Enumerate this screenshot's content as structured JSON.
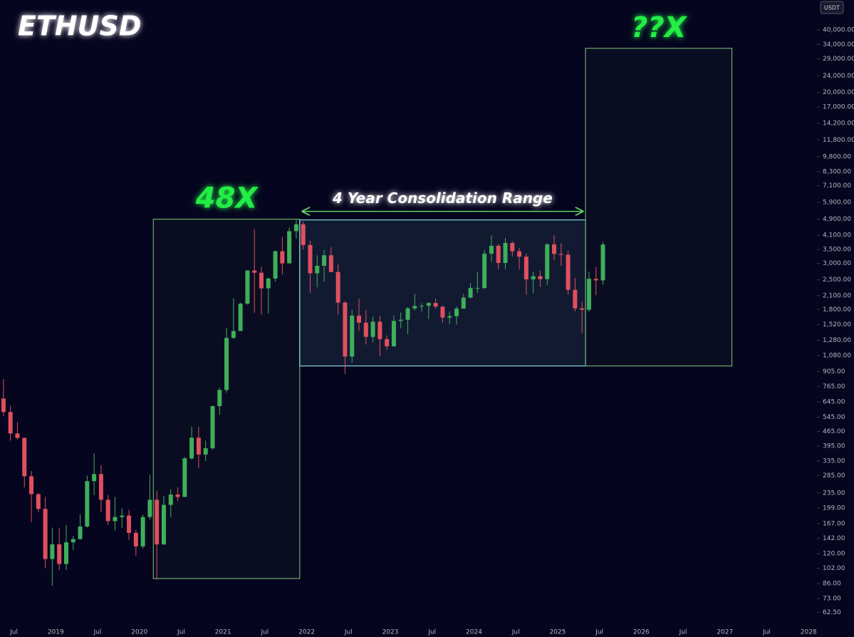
{
  "chart_data": {
    "type": "candlestick",
    "title": "ETHUSD",
    "currency": "USDT",
    "log_scale": true,
    "up_color": "#3fae5a",
    "down_color": "#e0505e",
    "x": [
      "2018-05",
      "2018-06",
      "2018-07",
      "2018-08",
      "2018-09",
      "2018-10",
      "2018-11",
      "2018-12",
      "2019-01",
      "2019-02",
      "2019-03",
      "2019-04",
      "2019-05",
      "2019-06",
      "2019-07",
      "2019-08",
      "2019-09",
      "2019-10",
      "2019-11",
      "2019-12",
      "2020-01",
      "2020-02",
      "2020-03",
      "2020-04",
      "2020-05",
      "2020-06",
      "2020-07",
      "2020-08",
      "2020-09",
      "2020-10",
      "2020-11",
      "2020-12",
      "2021-01",
      "2021-02",
      "2021-03",
      "2021-04",
      "2021-05",
      "2021-06",
      "2021-07",
      "2021-08",
      "2021-09",
      "2021-10",
      "2021-11",
      "2021-12",
      "2022-01",
      "2022-02",
      "2022-03",
      "2022-04",
      "2022-05",
      "2022-06",
      "2022-07",
      "2022-08",
      "2022-09",
      "2022-10",
      "2022-11",
      "2022-12",
      "2023-01",
      "2023-02",
      "2023-03",
      "2023-04",
      "2023-05",
      "2023-06",
      "2023-07",
      "2023-08",
      "2023-09",
      "2023-10",
      "2023-11",
      "2023-12",
      "2024-01",
      "2024-02",
      "2024-03",
      "2024-04",
      "2024-05",
      "2024-06",
      "2024-07",
      "2024-08",
      "2024-09",
      "2024-10",
      "2024-11",
      "2024-12",
      "2025-01",
      "2025-02",
      "2025-03",
      "2025-04",
      "2025-05",
      "2025-06",
      "2025-07"
    ],
    "open": [
      670,
      577,
      455,
      433,
      283,
      232,
      197,
      113,
      133,
      107,
      136,
      141,
      162,
      268,
      290,
      218,
      172,
      180,
      183,
      151,
      130,
      180,
      218,
      133,
      206,
      231,
      225,
      345,
      434,
      360,
      386,
      616,
      737,
      1313,
      1417,
      1918,
      2772,
      2706,
      2275,
      2536,
      3433,
      3000,
      4288,
      4630,
      3680,
      2688,
      2920,
      3283,
      2727,
      1942,
      1067,
      1680,
      1554,
      1328,
      1572,
      1295,
      1196,
      1585,
      1605,
      1822,
      1869,
      1874,
      1934,
      1857,
      1645,
      1671,
      1816,
      2052,
      2282,
      2283,
      3340,
      3647,
      3014,
      3762,
      3433,
      3232,
      2513,
      2603,
      2518,
      3705,
      3332,
      3300,
      2237,
      1822,
      1794,
      2528,
      2486
    ],
    "high": [
      830,
      620,
      515,
      435,
      300,
      235,
      225,
      160,
      160,
      165,
      146,
      185,
      285,
      365,
      320,
      230,
      225,
      198,
      195,
      156,
      185,
      288,
      240,
      228,
      245,
      250,
      350,
      490,
      490,
      420,
      620,
      755,
      1470,
      2040,
      1940,
      2780,
      4380,
      2890,
      2560,
      3470,
      4030,
      4460,
      4870,
      4780,
      3860,
      3280,
      3480,
      3590,
      2970,
      1970,
      1790,
      2030,
      1790,
      1660,
      1680,
      1350,
      1680,
      1740,
      1850,
      2140,
      1930,
      1950,
      2030,
      1870,
      1760,
      1860,
      2140,
      2410,
      2720,
      3480,
      4090,
      3730,
      3980,
      3840,
      3560,
      3350,
      2730,
      2770,
      3750,
      4100,
      3750,
      3450,
      2550,
      1960,
      2740,
      2880,
      3800
    ],
    "low": [
      550,
      420,
      425,
      250,
      170,
      190,
      102,
      84,
      100,
      100,
      125,
      140,
      160,
      230,
      190,
      165,
      155,
      160,
      140,
      117,
      127,
      175,
      90,
      132,
      180,
      215,
      225,
      340,
      310,
      335,
      380,
      560,
      715,
      1300,
      1440,
      1900,
      1730,
      1700,
      1720,
      2450,
      2650,
      3000,
      3950,
      3500,
      2160,
      2300,
      2450,
      2720,
      1700,
      880,
      1000,
      1420,
      1220,
      1250,
      1070,
      1150,
      1190,
      1460,
      1370,
      1780,
      1760,
      1620,
      1820,
      1550,
      1530,
      1520,
      1930,
      2040,
      2160,
      2260,
      3060,
      2810,
      2820,
      3240,
      2810,
      2120,
      2150,
      2310,
      2360,
      3100,
      2920,
      2120,
      1760,
      1385,
      1750,
      2110,
      2370
    ],
    "close": [
      577,
      455,
      433,
      283,
      232,
      197,
      113,
      133,
      107,
      136,
      141,
      162,
      268,
      290,
      218,
      172,
      180,
      183,
      151,
      130,
      180,
      218,
      133,
      206,
      231,
      225,
      345,
      434,
      360,
      386,
      616,
      737,
      1313,
      1417,
      1918,
      2772,
      2706,
      2275,
      2536,
      3433,
      3000,
      4288,
      4630,
      3680,
      2688,
      2920,
      3283,
      2727,
      1942,
      1067,
      1680,
      1554,
      1328,
      1572,
      1295,
      1196,
      1585,
      1605,
      1822,
      1869,
      1874,
      1934,
      1857,
      1645,
      1671,
      1816,
      2052,
      2282,
      2283,
      3340,
      3647,
      3014,
      3762,
      3433,
      3232,
      2513,
      2603,
      2518,
      3705,
      3332,
      3300,
      2237,
      1822,
      1794,
      2528,
      2486,
      3700
    ],
    "xlim": [
      "2018-05",
      "2028-02"
    ],
    "ylim": [
      54,
      55700
    ],
    "xticks": [
      {
        "value": "2018-07",
        "label": "Jul"
      },
      {
        "value": "2019-01",
        "label": "2019"
      },
      {
        "value": "2019-07",
        "label": "Jul"
      },
      {
        "value": "2020-01",
        "label": "2020"
      },
      {
        "value": "2020-07",
        "label": "Jul"
      },
      {
        "value": "2021-01",
        "label": "2021"
      },
      {
        "value": "2021-07",
        "label": "Jul"
      },
      {
        "value": "2022-01",
        "label": "2022"
      },
      {
        "value": "2022-07",
        "label": "Jul"
      },
      {
        "value": "2023-01",
        "label": "2023"
      },
      {
        "value": "2023-07",
        "label": "Jul"
      },
      {
        "value": "2024-01",
        "label": "2024"
      },
      {
        "value": "2024-07",
        "label": "Jul"
      },
      {
        "value": "2025-01",
        "label": "2025"
      },
      {
        "value": "2025-07",
        "label": "Jul"
      },
      {
        "value": "2026-01",
        "label": "2026"
      },
      {
        "value": "2026-07",
        "label": "Jul"
      },
      {
        "value": "2027-01",
        "label": "2027"
      },
      {
        "value": "2027-07",
        "label": "Jul"
      },
      {
        "value": "2028-01",
        "label": "2028"
      }
    ],
    "yticks": [
      {
        "value": 40000,
        "label": "40,000.00"
      },
      {
        "value": 34000,
        "label": "34,000.00"
      },
      {
        "value": 29000,
        "label": "29,000.00"
      },
      {
        "value": 24000,
        "label": "24,000.00"
      },
      {
        "value": 20000,
        "label": "20,000.00"
      },
      {
        "value": 17000,
        "label": "17,000.00"
      },
      {
        "value": 14200,
        "label": "14,200.00"
      },
      {
        "value": 11800,
        "label": "11,800.00"
      },
      {
        "value": 9800,
        "label": "9,800.00"
      },
      {
        "value": 8300,
        "label": "8,300.00"
      },
      {
        "value": 7100,
        "label": "7,100.00"
      },
      {
        "value": 5900,
        "label": "5,900.00"
      },
      {
        "value": 4900,
        "label": "4,900.00"
      },
      {
        "value": 4100,
        "label": "4,100.00"
      },
      {
        "value": 3500,
        "label": "3,500.00"
      },
      {
        "value": 3000,
        "label": "3,000.00"
      },
      {
        "value": 2500,
        "label": "2,500.00"
      },
      {
        "value": 2100,
        "label": "2,100.00"
      },
      {
        "value": 1800,
        "label": "1,800.00"
      },
      {
        "value": 1520,
        "label": "1,520.00"
      },
      {
        "value": 1280,
        "label": "1,280.00"
      },
      {
        "value": 1080,
        "label": "1,080.00"
      },
      {
        "value": 905,
        "label": "905.00"
      },
      {
        "value": 765,
        "label": "765.00"
      },
      {
        "value": 645,
        "label": "645.00"
      },
      {
        "value": 545,
        "label": "545.00"
      },
      {
        "value": 465,
        "label": "465.00"
      },
      {
        "value": 395,
        "label": "395.00"
      },
      {
        "value": 335,
        "label": "335.00"
      },
      {
        "value": 285,
        "label": "285.00"
      },
      {
        "value": 235,
        "label": "235.00"
      },
      {
        "value": 199,
        "label": "199.00"
      },
      {
        "value": 167,
        "label": "167.00"
      },
      {
        "value": 142,
        "label": "142.00"
      },
      {
        "value": 120,
        "label": "120.00"
      },
      {
        "value": 102,
        "label": "102.00"
      },
      {
        "value": 86,
        "label": "86.00"
      },
      {
        "value": 73,
        "label": "73.00"
      },
      {
        "value": 62.5,
        "label": "62.50"
      }
    ],
    "boxes": [
      {
        "label": "48X",
        "x": [
          "2020-03",
          "2021-12"
        ],
        "y": [
          91,
          4900
        ],
        "color": "#6aa96a"
      },
      {
        "label": "4 Year Consolidation Range",
        "x": [
          "2021-12",
          "2025-05"
        ],
        "y": [
          962,
          4860
        ],
        "color": "#7fd6e0"
      },
      {
        "label": "??X",
        "x": [
          "2025-05",
          "2027-02"
        ],
        "y": [
          962,
          32600
        ],
        "color": "#6aa96a"
      }
    ]
  }
}
